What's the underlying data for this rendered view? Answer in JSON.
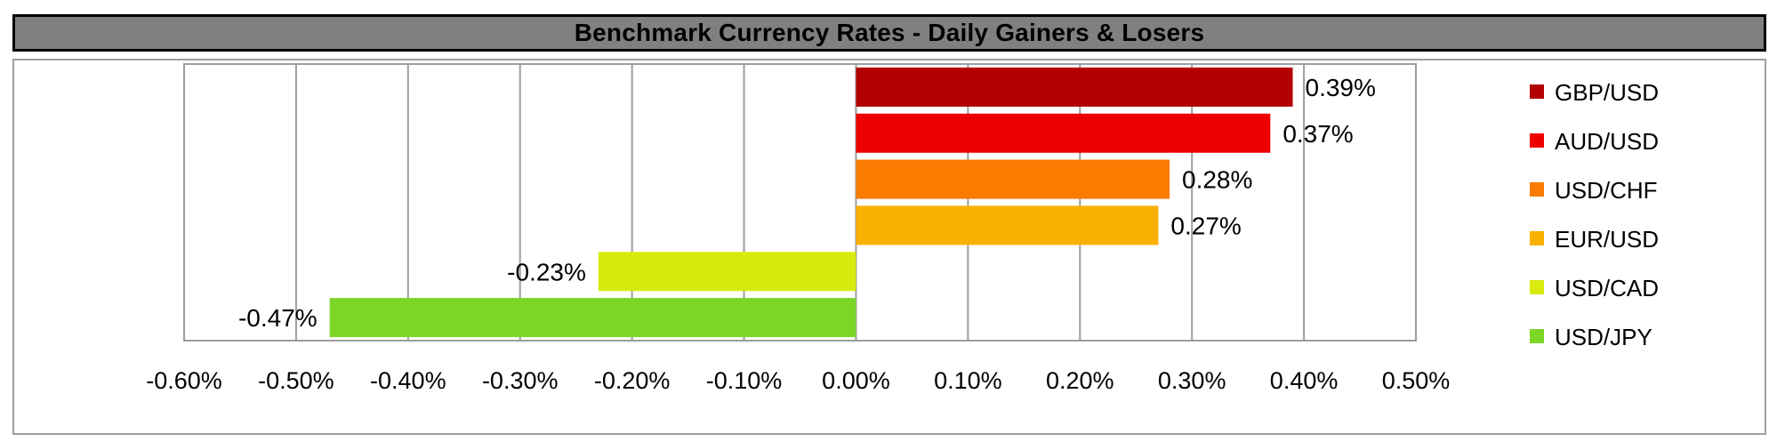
{
  "title": "Benchmark Currency Rates - Daily Gainers & Losers",
  "chart_data": {
    "type": "bar",
    "orientation": "horizontal",
    "categories": [
      "GBP/USD",
      "AUD/USD",
      "USD/CHF",
      "EUR/USD",
      "USD/CAD",
      "USD/JPY"
    ],
    "values": [
      0.39,
      0.37,
      0.28,
      0.27,
      -0.23,
      -0.47
    ],
    "value_labels": [
      "0.39%",
      "0.37%",
      "0.28%",
      "0.27%",
      "-0.23%",
      "-0.47%"
    ],
    "colors": [
      "#b30000",
      "#ee0000",
      "#f97c00",
      "#f9b000",
      "#d8ea0e",
      "#7cd626"
    ],
    "xlim": [
      -0.6,
      0.5
    ],
    "x_ticks": [
      -0.6,
      -0.5,
      -0.4,
      -0.3,
      -0.2,
      -0.1,
      0.0,
      0.1,
      0.2,
      0.3,
      0.4,
      0.5
    ],
    "x_tick_labels": [
      "-0.60%",
      "-0.50%",
      "-0.40%",
      "-0.30%",
      "-0.20%",
      "-0.10%",
      "0.00%",
      "0.10%",
      "0.20%",
      "0.30%",
      "0.40%",
      "0.50%"
    ],
    "xlabel": "",
    "ylabel": "",
    "grid": "vertical",
    "legend": {
      "placement": "right",
      "entries": [
        "GBP/USD",
        "AUD/USD",
        "USD/CHF",
        "EUR/USD",
        "USD/CAD",
        "USD/JPY"
      ]
    }
  }
}
